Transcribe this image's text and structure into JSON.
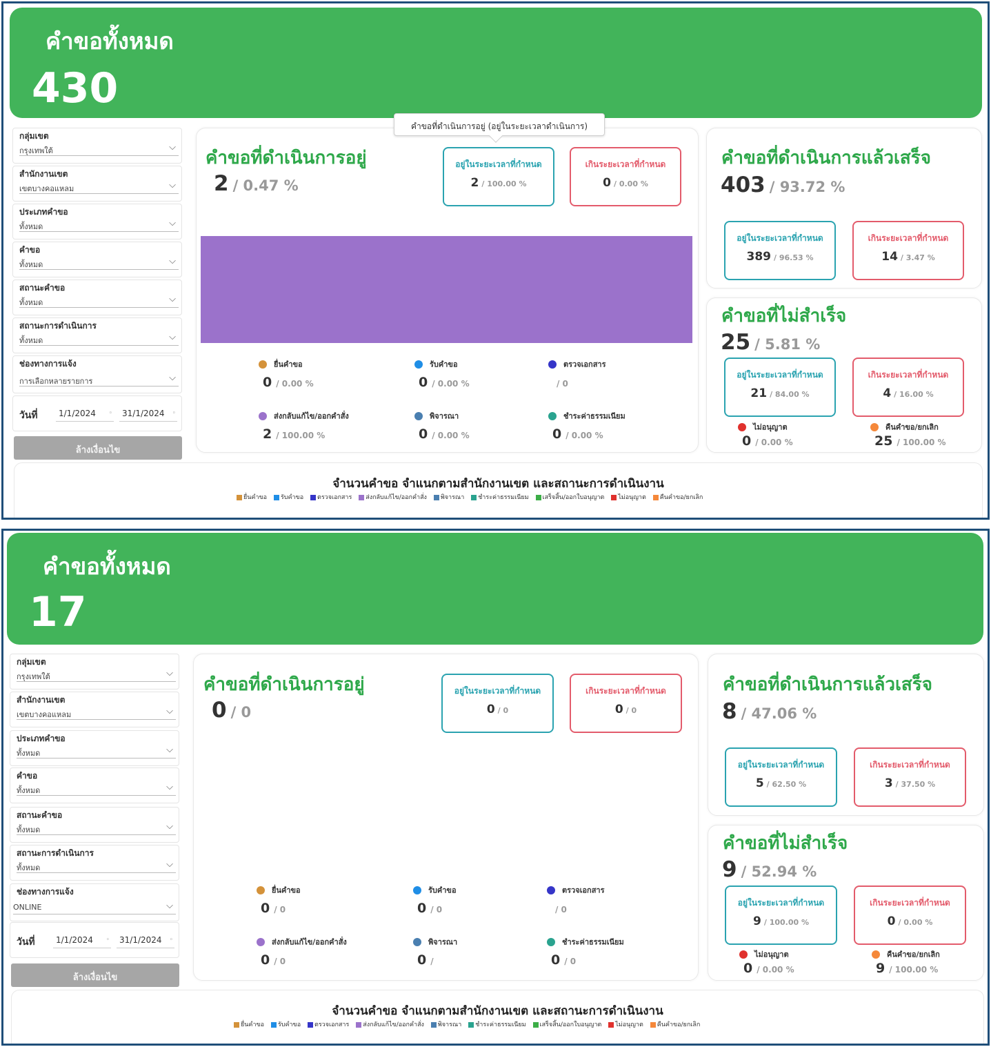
{
  "panels": [
    {
      "header": {
        "title": "คำขอทั้งหมด",
        "total": "430"
      },
      "filters": [
        {
          "label": "กลุ่มเขต",
          "value": "กรุงเทพใต้"
        },
        {
          "label": "สำนักงานเขต",
          "value": "เขตบางคอแหลม"
        },
        {
          "label": "ประเภทคำขอ",
          "value": "ทั้งหมด"
        },
        {
          "label": "คำขอ",
          "value": "ทั้งหมด"
        },
        {
          "label": "สถานะคำขอ",
          "value": "ทั้งหมด"
        },
        {
          "label": "สถานะการดำเนินการ",
          "value": "ทั้งหมด"
        },
        {
          "label": "ช่องทางการแจ้ง",
          "value": "การเลือกหลายรายการ"
        }
      ],
      "date": {
        "label": "วันที่",
        "start": "1/1/2024",
        "end": "31/1/2024"
      },
      "clear_label": "ล้างเงื่อนไข",
      "tooltip": "คำขอที่ดำเนินการอยู่ (อยู่ในระยะเวลาดำเนินการ)",
      "in_progress": {
        "title": "คำขอที่ดำเนินการอยู่",
        "value": "2",
        "pct": "/ 0.47 %",
        "ontime": {
          "label": "อยู่ในระยะเวลาที่กำหนด",
          "value": "2",
          "pct": "/ 100.00 %"
        },
        "overdue": {
          "label": "เกินระยะเวลาที่กำหนด",
          "value": "0",
          "pct": "/ 0.00 %"
        },
        "bar_fraction": 1.0,
        "statuses": [
          {
            "label": "ยื่นคำขอ",
            "value": "0",
            "pct": "/ 0.00 %",
            "color": "#d4923a"
          },
          {
            "label": "รับคำขอ",
            "value": "0",
            "pct": "/ 0.00 %",
            "color": "#1f8ee6"
          },
          {
            "label": "ตรวจเอกสาร",
            "value": "",
            "pct": "/ 0",
            "color": "#3535c8"
          },
          {
            "label": "ส่งกลับแก้ไข/ออกคำสั่ง",
            "value": "2",
            "pct": "/ 100.00 %",
            "color": "#9b72cb"
          },
          {
            "label": "พิจารณา",
            "value": "0",
            "pct": "/ 0.00 %",
            "color": "#4a7fb0"
          },
          {
            "label": "ชำระค่าธรรมเนียม",
            "value": "0",
            "pct": "/ 0.00 %",
            "color": "#2aa38f"
          }
        ]
      },
      "completed": {
        "title": "คำขอที่ดำเนินการแล้วเสร็จ",
        "value": "403",
        "pct": "/ 93.72 %",
        "ontime": {
          "label": "อยู่ในระยะเวลาที่กำหนด",
          "value": "389",
          "pct": "/ 96.53 %"
        },
        "overdue": {
          "label": "เกินระยะเวลาที่กำหนด",
          "value": "14",
          "pct": "/ 3.47 %"
        }
      },
      "failed": {
        "title": "คำขอที่ไม่สำเร็จ",
        "value": "25",
        "pct": "/ 5.81 %",
        "ontime": {
          "label": "อยู่ในระยะเวลาที่กำหนด",
          "value": "21",
          "pct": "/ 84.00 %"
        },
        "overdue": {
          "label": "เกินระยะเวลาที่กำหนด",
          "value": "4",
          "pct": "/ 16.00 %"
        },
        "denied": {
          "label": "ไม่อนุญาต",
          "value": "0",
          "pct": "/ 0.00 %",
          "color": "#e0312d"
        },
        "returned": {
          "label": "คืนคำขอ/ยกเลิก",
          "value": "25",
          "pct": "/ 100.00 %",
          "color": "#f5883a"
        }
      },
      "bottom": {
        "title": "จำนวนคำขอ  จำแนกตามสำนักงานเขต และสถานะการดำเนินงาน"
      }
    },
    {
      "header": {
        "title": "คำขอทั้งหมด",
        "total": "17"
      },
      "filters": [
        {
          "label": "กลุ่มเขต",
          "value": "กรุงเทพใต้"
        },
        {
          "label": "สำนักงานเขต",
          "value": "เขตบางคอแหลม"
        },
        {
          "label": "ประเภทคำขอ",
          "value": "ทั้งหมด"
        },
        {
          "label": "คำขอ",
          "value": "ทั้งหมด"
        },
        {
          "label": "สถานะคำขอ",
          "value": "ทั้งหมด"
        },
        {
          "label": "สถานะการดำเนินการ",
          "value": "ทั้งหมด"
        },
        {
          "label": "ช่องทางการแจ้ง",
          "value": "ONLINE"
        }
      ],
      "date": {
        "label": "วันที่",
        "start": "1/1/2024",
        "end": "31/1/2024"
      },
      "clear_label": "ล้างเงื่อนไข",
      "tooltip": "",
      "in_progress": {
        "title": "คำขอที่ดำเนินการอยู่",
        "value": "0",
        "pct": "/ 0",
        "ontime": {
          "label": "อยู่ในระยะเวลาที่กำหนด",
          "value": "0",
          "pct": "/ 0"
        },
        "overdue": {
          "label": "เกินระยะเวลาที่กำหนด",
          "value": "0",
          "pct": "/ 0"
        },
        "bar_fraction": 0,
        "statuses": [
          {
            "label": "ยื่นคำขอ",
            "value": "0",
            "pct": "/ 0",
            "color": "#d4923a"
          },
          {
            "label": "รับคำขอ",
            "value": "0",
            "pct": "/ 0",
            "color": "#1f8ee6"
          },
          {
            "label": "ตรวจเอกสาร",
            "value": "",
            "pct": "/ 0",
            "color": "#3535c8"
          },
          {
            "label": "ส่งกลับแก้ไข/ออกคำสั่ง",
            "value": "0",
            "pct": "/ 0",
            "color": "#9b72cb"
          },
          {
            "label": "พิจารณา",
            "value": "0",
            "pct": "/",
            "color": "#4a7fb0"
          },
          {
            "label": "ชำระค่าธรรมเนียม",
            "value": "0",
            "pct": "/ 0",
            "color": "#2aa38f"
          }
        ]
      },
      "completed": {
        "title": "คำขอที่ดำเนินการแล้วเสร็จ",
        "value": "8",
        "pct": "/ 47.06 %",
        "ontime": {
          "label": "อยู่ในระยะเวลาที่กำหนด",
          "value": "5",
          "pct": "/ 62.50 %"
        },
        "overdue": {
          "label": "เกินระยะเวลาที่กำหนด",
          "value": "3",
          "pct": "/ 37.50 %"
        }
      },
      "failed": {
        "title": "คำขอที่ไม่สำเร็จ",
        "value": "9",
        "pct": "/ 52.94 %",
        "ontime": {
          "label": "อยู่ในระยะเวลาที่กำหนด",
          "value": "9",
          "pct": "/ 100.00 %"
        },
        "overdue": {
          "label": "เกินระยะเวลาที่กำหนด",
          "value": "0",
          "pct": "/ 0.00 %"
        },
        "denied": {
          "label": "ไม่อนุญาต",
          "value": "0",
          "pct": "/ 0.00 %",
          "color": "#e0312d"
        },
        "returned": {
          "label": "คืนคำขอ/ยกเลิก",
          "value": "9",
          "pct": "/ 100.00 %",
          "color": "#f5883a"
        }
      },
      "bottom": {
        "title": "จำนวนคำขอ  จำแนกตามสำนักงานเขต และสถานะการดำเนินงาน"
      }
    }
  ],
  "legend": [
    {
      "label": "ยื่นคำขอ",
      "color": "#d4923a"
    },
    {
      "label": "รับคำขอ",
      "color": "#1f8ee6"
    },
    {
      "label": "ตรวจเอกสาร",
      "color": "#3535c8"
    },
    {
      "label": "ส่งกลับแก้ไข/ออกคำสั่ง",
      "color": "#9b72cb"
    },
    {
      "label": "พิจารณา",
      "color": "#4a7fb0"
    },
    {
      "label": "ชำระค่าธรรมเนียม",
      "color": "#2aa38f"
    },
    {
      "label": "เสร็จสิ้น/ออกใบอนุญาต",
      "color": "#3cae47"
    },
    {
      "label": "ไม่อนุญาต",
      "color": "#e0312d"
    },
    {
      "label": "คืนคำขอ/ยกเลิก",
      "color": "#f5883a"
    }
  ]
}
